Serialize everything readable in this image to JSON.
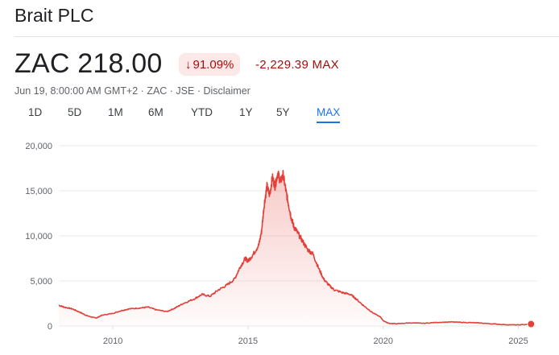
{
  "header": {
    "title": "Brait PLC",
    "price": "ZAC 218.00",
    "change_pct": "91.09%",
    "change_abs": "-2,229.39 MAX",
    "meta_text": "Jun 19, 8:00:00 AM GMT+2 · ZAC · JSE · ",
    "disclaimer": "Disclaimer"
  },
  "ranges": [
    "1D",
    "5D",
    "1M",
    "6M",
    "YTD",
    "1Y",
    "5Y",
    "MAX"
  ],
  "active_range": "MAX",
  "colors": {
    "line": "#e2413a",
    "negative": "#a50e0e",
    "badge_bg": "#fce8e6",
    "accent": "#1a73e8"
  },
  "chart_data": {
    "type": "area",
    "title": "",
    "xlabel": "",
    "ylabel": "",
    "ylim": [
      0,
      20000
    ],
    "yticks": [
      0,
      5000,
      10000,
      15000,
      20000
    ],
    "ytick_labels": [
      "0",
      "5,000",
      "10,000",
      "15,000",
      "20,000"
    ],
    "xticks": [
      2010,
      2015,
      2020,
      2025
    ],
    "xlim": [
      2008.0,
      2025.7
    ],
    "grid": true,
    "series": [
      {
        "x": [
          2008.0,
          2008.2,
          2008.5,
          2008.8,
          2009.0,
          2009.2,
          2009.4,
          2009.6,
          2010.0,
          2010.3,
          2010.6,
          2011.0,
          2011.3,
          2011.6,
          2012.0,
          2012.3,
          2012.6,
          2013.0,
          2013.3,
          2013.6,
          2013.9,
          2014.2,
          2014.5,
          2014.7,
          2014.9,
          2015.0,
          2015.2,
          2015.4,
          2015.5,
          2015.6,
          2015.7,
          2015.8,
          2015.9,
          2016.0,
          2016.1,
          2016.2,
          2016.3,
          2016.4,
          2016.5,
          2016.6,
          2016.7,
          2016.8,
          2017.0,
          2017.2,
          2017.4,
          2017.6,
          2017.8,
          2018.0,
          2018.2,
          2018.5,
          2018.8,
          2019.0,
          2019.3,
          2019.6,
          2019.9,
          2020.0,
          2020.2,
          2020.5,
          2021.0,
          2021.5,
          2022.0,
          2022.5,
          2023.0,
          2023.5,
          2024.0,
          2024.5,
          2025.0,
          2025.47
        ],
        "y": [
          2300,
          2100,
          1900,
          1500,
          1200,
          1000,
          900,
          1200,
          1400,
          1700,
          1900,
          2000,
          2100,
          1800,
          1600,
          2000,
          2500,
          3000,
          3500,
          3300,
          4000,
          4500,
          5200,
          6500,
          7500,
          7200,
          8000,
          9000,
          10500,
          13500,
          15500,
          14500,
          16500,
          15500,
          17000,
          16000,
          16800,
          15000,
          13500,
          12000,
          11000,
          10500,
          9500,
          8500,
          8000,
          6500,
          5200,
          4500,
          4000,
          3700,
          3500,
          3000,
          2200,
          1500,
          1000,
          600,
          300,
          250,
          350,
          300,
          400,
          450,
          400,
          350,
          250,
          150,
          120,
          218
        ]
      }
    ]
  }
}
